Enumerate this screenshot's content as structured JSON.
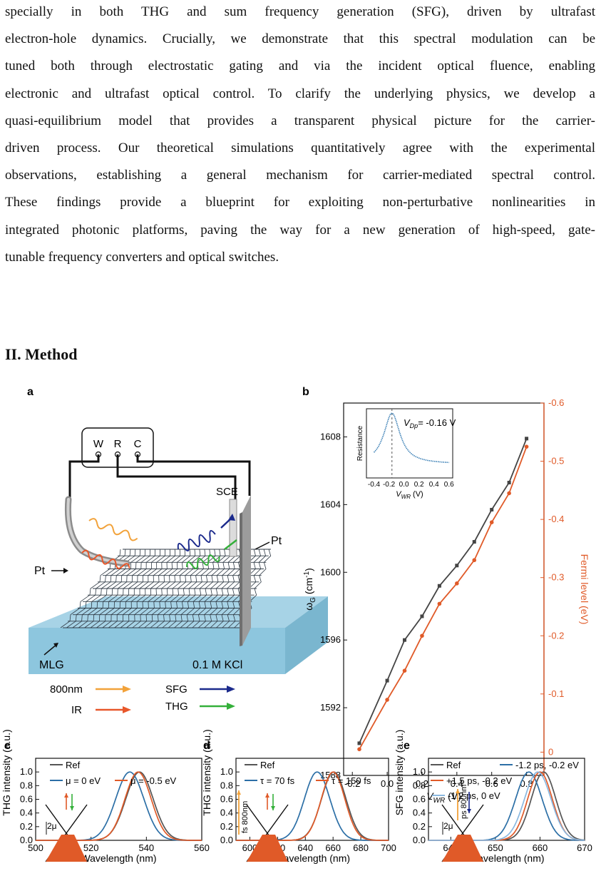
{
  "paragraph": [
    "specially in both THG and sum frequency generation (SFG), driven by ultrafast",
    "electron-hole dynamics. Crucially, we demonstrate that this spectral modulation can be",
    "tuned both through electrostatic gating and via the incident optical fluence, enabling",
    "electronic and ultrafast optical control. To clarify the underlying physics, we develop a",
    "quasi-equilibrium model that provides a transparent physical picture for the carrier-",
    "driven process. Our theoretical simulations quantitatively agree with the experimental",
    "observations, establishing a general mechanism for carrier-mediated spectral control.",
    "These findings provide a blueprint for exploiting non-perturbative nonlinearities in",
    "integrated photonic platforms, paving the way for a new generation of high-speed, gate-",
    "tunable frequency converters and optical switches."
  ],
  "heading": "II. Method",
  "panel_a": {
    "label": "a",
    "electrodes": [
      "W",
      "R",
      "C"
    ],
    "sce": "SCE",
    "pt_left": "Pt",
    "pt_right": "Pt",
    "mlg": "MLG",
    "kcl": "0.1 M KCl",
    "legend": [
      {
        "label": "800nm",
        "color": "#f2a23a"
      },
      {
        "label": "IR",
        "color": "#e8572a"
      },
      {
        "label": "SFG",
        "color": "#1b2a8c"
      },
      {
        "label": "THG",
        "color": "#34b03a"
      }
    ]
  },
  "chart_data": [
    {
      "panel": "b",
      "type": "line",
      "xlabel": "V_WR (V)",
      "ylabel_left": "ω_G (cm⁻¹)",
      "ylabel_right": "Fermi level (eV)",
      "xlim": [
        -0.25,
        0.9
      ],
      "ylim_left": [
        1588,
        1610
      ],
      "ylim_right": [
        0.04,
        -0.6
      ],
      "xticks": [
        -0.2,
        0.0,
        0.2,
        0.4,
        0.6,
        0.8
      ],
      "yticks_left": [
        1588,
        1592,
        1596,
        1600,
        1604,
        1608
      ],
      "yticks_right": [
        0,
        -0.1,
        -0.2,
        -0.3,
        -0.4,
        -0.5,
        -0.6
      ],
      "series": [
        {
          "axis": "left",
          "color": "#444444",
          "marker": "square",
          "x": [
            -0.16,
            0.0,
            0.1,
            0.2,
            0.3,
            0.4,
            0.5,
            0.6,
            0.7,
            0.8
          ],
          "y": [
            1589.9,
            1593.6,
            1596.0,
            1597.4,
            1599.2,
            1600.4,
            1601.8,
            1603.7,
            1605.3,
            1607.9
          ]
        },
        {
          "axis": "right",
          "color": "#e05a28",
          "marker": "circle",
          "x": [
            -0.16,
            0.0,
            0.1,
            0.2,
            0.3,
            0.4,
            0.5,
            0.6,
            0.7,
            0.8
          ],
          "y": [
            -0.005,
            -0.09,
            -0.14,
            -0.2,
            -0.255,
            -0.29,
            -0.33,
            -0.395,
            -0.445,
            -0.525
          ]
        }
      ],
      "inset": {
        "type": "line",
        "xlabel": "V_WR (V)",
        "ylabel": "Resistance",
        "annotation": "V_Dp = -0.16 V",
        "xticks": [
          -0.4,
          -0.2,
          0.0,
          0.2,
          0.4,
          0.6
        ],
        "dirac_point": -0.16
      }
    },
    {
      "panel": "c",
      "type": "line",
      "xlabel": "Wavelength (nm)",
      "ylabel": "THG intensity (a.u.)",
      "xlim": [
        500,
        560
      ],
      "ylim": [
        0,
        1.0
      ],
      "xticks": [
        500,
        520,
        540,
        560
      ],
      "yticks": [
        0.0,
        0.2,
        0.4,
        0.6,
        0.8,
        1.0
      ],
      "series": [
        {
          "name": "Ref",
          "color": "#555555",
          "peak": 537.5,
          "width": 7.0
        },
        {
          "name": "μ = 0 eV",
          "color": "#2c6fa6",
          "peak": 534.0,
          "width": 7.2
        },
        {
          "name": "μ = -0.5 eV",
          "color": "#e05a28",
          "peak": 537.0,
          "width": 6.7
        }
      ],
      "inset_label": "2μ"
    },
    {
      "panel": "d",
      "type": "line",
      "xlabel": "Wavelength (nm)",
      "ylabel": "THG intensity (a.u.)",
      "xlim": [
        590,
        700
      ],
      "ylim": [
        0,
        1.0
      ],
      "xticks": [
        600,
        620,
        640,
        660,
        680,
        700
      ],
      "yticks": [
        0.0,
        0.2,
        0.4,
        0.6,
        0.8,
        1.0
      ],
      "series": [
        {
          "name": "Ref",
          "color": "#555555",
          "peak": 660.5,
          "width": 12.5
        },
        {
          "name": "τ = 70 fs",
          "color": "#2c6fa6",
          "peak": 648.5,
          "width": 13.0
        },
        {
          "name": "τ = 150 fs",
          "color": "#e05a28",
          "peak": 660.0,
          "width": 12.0
        }
      ],
      "inset_label": "fs 800nm"
    },
    {
      "panel": "e",
      "type": "line",
      "xlabel": "Wavelength (nm)",
      "ylabel": "SFG intensity (a.u.)",
      "xlim": [
        635,
        670
      ],
      "ylim": [
        0,
        1.0
      ],
      "xticks": [
        640,
        650,
        660,
        670
      ],
      "yticks": [
        0.0,
        0.2,
        0.4,
        0.6,
        0.8,
        1.0
      ],
      "series": [
        {
          "name": "Ref",
          "color": "#555555",
          "peak": 660.8,
          "width": 3.9
        },
        {
          "name": "-1.2 ps, -0.2 eV",
          "color": "#2c6fa6",
          "peak": 657.5,
          "width": 4.2
        },
        {
          "name": "+1.5 ps, -0.2 eV",
          "color": "#e05a28",
          "peak": 660.0,
          "width": 3.9
        },
        {
          "name": "-1.2 ps, 0 eV",
          "color": "#8ab8e0",
          "peak": 659.5,
          "width": 4.2
        }
      ],
      "inset_labels": [
        "2μ",
        "ps 800nm"
      ]
    }
  ]
}
